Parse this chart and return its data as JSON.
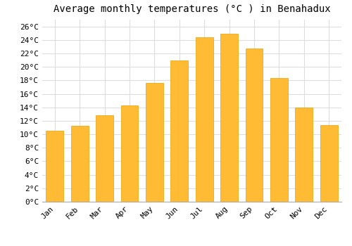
{
  "title": "Average monthly temperatures (°C ) in Benahadux",
  "months": [
    "Jan",
    "Feb",
    "Mar",
    "Apr",
    "May",
    "Jun",
    "Jul",
    "Aug",
    "Sep",
    "Oct",
    "Nov",
    "Dec"
  ],
  "values": [
    10.5,
    11.3,
    12.8,
    14.3,
    17.6,
    21.0,
    24.4,
    24.9,
    22.7,
    18.3,
    14.0,
    11.4
  ],
  "bar_color": "#FFBB33",
  "bar_edge_color": "#E8A000",
  "background_color": "#FFFFFF",
  "grid_color": "#DDDDDD",
  "ylim": [
    0,
    27
  ],
  "ytick_step": 2,
  "title_fontsize": 10,
  "tick_fontsize": 8,
  "font_family": "monospace"
}
